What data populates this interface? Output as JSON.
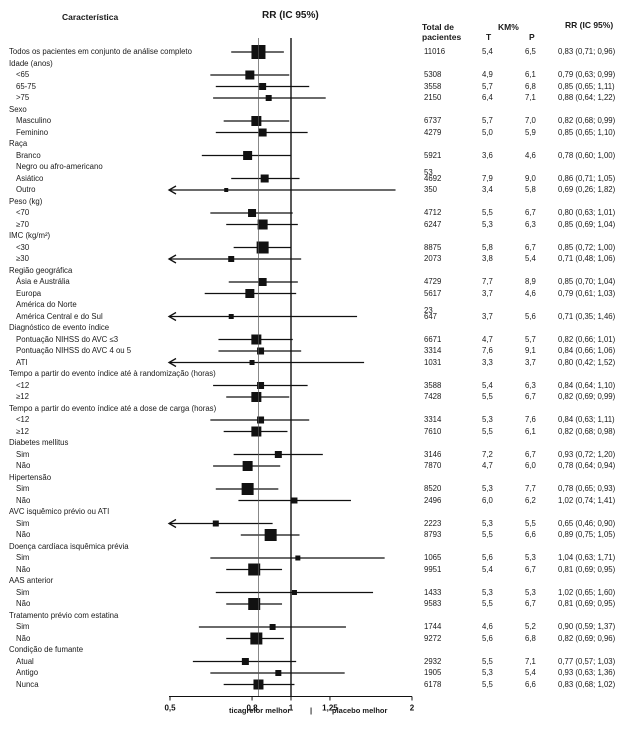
{
  "headers": {
    "characteristic": "Característica",
    "rr_title": "RR (IC 95%)",
    "total_line1": "Total de",
    "total_line2": "pacientes",
    "km": "KM%",
    "t": "T",
    "p": "P",
    "rr_col": "RR (IC 95%)"
  },
  "footer": {
    "left": "ticagrelor melhor",
    "sep": "|",
    "right": "placebo melhor"
  },
  "chart_data": {
    "type": "forest",
    "x_scale": "log",
    "x_ticks": [
      0.5,
      0.8,
      1,
      1.25,
      2
    ],
    "x_tick_labels": [
      "0,5",
      "0,8",
      "1",
      "1,25",
      "2"
    ],
    "xlim": [
      0.5,
      2
    ],
    "reference_line": 1,
    "overall_line": 0.83,
    "rows": [
      {
        "label": "Todos os pacientes em conjunto de análise completo",
        "indent": 0,
        "total": "11016",
        "t": "5,4",
        "p": "6,5",
        "rr_text": "0,83 (0,71; 0,96)",
        "rr": 0.83,
        "lo": 0.71,
        "hi": 0.96,
        "size": 14
      },
      {
        "label": "Idade (anos)",
        "indent": 0
      },
      {
        "label": "<65",
        "indent": 1,
        "total": "5308",
        "t": "4,9",
        "p": "6,1",
        "rr_text": "0,79 (0,63; 0,99)",
        "rr": 0.79,
        "lo": 0.63,
        "hi": 0.99,
        "size": 9
      },
      {
        "label": "65-75",
        "indent": 1,
        "total": "3558",
        "t": "5,7",
        "p": "6,8",
        "rr_text": "0,85 (0,65; 1,11)",
        "rr": 0.85,
        "lo": 0.65,
        "hi": 1.11,
        "size": 7
      },
      {
        "label": ">75",
        "indent": 1,
        "total": "2150",
        "t": "6,4",
        "p": "7,1",
        "rr_text": "0,88 (0,64; 1,22)",
        "rr": 0.88,
        "lo": 0.64,
        "hi": 1.22,
        "size": 6
      },
      {
        "label": "Sexo",
        "indent": 0
      },
      {
        "label": "Masculino",
        "indent": 1,
        "total": "6737",
        "t": "5,7",
        "p": "7,0",
        "rr_text": "0,82 (0,68; 0,99)",
        "rr": 0.82,
        "lo": 0.68,
        "hi": 0.99,
        "size": 10
      },
      {
        "label": "Feminino",
        "indent": 1,
        "total": "4279",
        "t": "5,0",
        "p": "5,9",
        "rr_text": "0,85 (0,65; 1,10)",
        "rr": 0.85,
        "lo": 0.65,
        "hi": 1.1,
        "size": 8
      },
      {
        "label": "Raça",
        "indent": 0
      },
      {
        "label": "Branco",
        "indent": 1,
        "total": "5921",
        "t": "3,6",
        "p": "4,6",
        "rr_text": "0,78 (0,60; 1,00)",
        "rr": 0.78,
        "lo": 0.6,
        "hi": 1.0,
        "size": 9
      },
      {
        "label": "Negro ou afro-americano",
        "indent": 1,
        "total": "53"
      },
      {
        "label": "Asiático",
        "indent": 1,
        "total": "4692",
        "t": "7,9",
        "p": "9,0",
        "rr_text": "0,86 (0,71; 1,05)",
        "rr": 0.86,
        "lo": 0.71,
        "hi": 1.05,
        "size": 8
      },
      {
        "label": "Outro",
        "indent": 1,
        "total": "350",
        "t": "3,4",
        "p": "5,8",
        "rr_text": "0,69 (0,26; 1,82)",
        "rr": 0.69,
        "lo": 0.26,
        "hi": 1.82,
        "size": 4
      },
      {
        "label": "Peso (kg)",
        "indent": 0
      },
      {
        "label": "<70",
        "indent": 1,
        "total": "4712",
        "t": "5,5",
        "p": "6,7",
        "rr_text": "0,80 (0,63; 1,01)",
        "rr": 0.8,
        "lo": 0.63,
        "hi": 1.01,
        "size": 8
      },
      {
        "label": "≥70",
        "indent": 1,
        "total": "6247",
        "t": "5,3",
        "p": "6,3",
        "rr_text": "0,85 (0,69; 1,04)",
        "rr": 0.85,
        "lo": 0.69,
        "hi": 1.04,
        "size": 10
      },
      {
        "label": "IMC (kg/m²)",
        "indent": 0
      },
      {
        "label": "<30",
        "indent": 1,
        "total": "8875",
        "t": "5,8",
        "p": "6,7",
        "rr_text": "0,85 (0,72; 1,00)",
        "rr": 0.85,
        "lo": 0.72,
        "hi": 1.0,
        "size": 12
      },
      {
        "label": "≥30",
        "indent": 1,
        "total": "2073",
        "t": "3,8",
        "p": "5,4",
        "rr_text": "0,71 (0,48; 1,06)",
        "rr": 0.71,
        "lo": 0.48,
        "hi": 1.06,
        "size": 6
      },
      {
        "label": "Região geográfica",
        "indent": 0
      },
      {
        "label": "Ásia e Austrália",
        "indent": 1,
        "total": "4729",
        "t": "7,7",
        "p": "8,9",
        "rr_text": "0,85 (0,70; 1,04)",
        "rr": 0.85,
        "lo": 0.7,
        "hi": 1.04,
        "size": 8
      },
      {
        "label": "Europa",
        "indent": 1,
        "total": "5617",
        "t": "3,7",
        "p": "4,6",
        "rr_text": "0,79 (0,61; 1,03)",
        "rr": 0.79,
        "lo": 0.61,
        "hi": 1.03,
        "size": 9
      },
      {
        "label": "América do Norte",
        "indent": 1,
        "total": "23"
      },
      {
        "label": "América Central e do Sul",
        "indent": 1,
        "total": "647",
        "t": "3,7",
        "p": "5,6",
        "rr_text": "0,71 (0,35; 1,46)",
        "rr": 0.71,
        "lo": 0.35,
        "hi": 1.46,
        "size": 5
      },
      {
        "label": "Diagnóstico de evento índice",
        "indent": 0
      },
      {
        "label": "Pontuação NIHSS do AVC ≤3",
        "indent": 1,
        "total": "6671",
        "t": "4,7",
        "p": "5,7",
        "rr_text": "0,82 (0,66; 1,01)",
        "rr": 0.82,
        "lo": 0.66,
        "hi": 1.01,
        "size": 10
      },
      {
        "label": "Pontuação NIHSS do AVC 4 ou 5",
        "indent": 1,
        "total": "3314",
        "t": "7,6",
        "p": "9,1",
        "rr_text": "0,84 (0,66; 1,06)",
        "rr": 0.84,
        "lo": 0.66,
        "hi": 1.06,
        "size": 7
      },
      {
        "label": "ATI",
        "indent": 1,
        "total": "1031",
        "t": "3,3",
        "p": "3,7",
        "rr_text": "0,80 (0,42; 1,52)",
        "rr": 0.8,
        "lo": 0.42,
        "hi": 1.52,
        "size": 5
      },
      {
        "label": "Tempo a partir do evento índice até à randomização (horas)",
        "indent": 0
      },
      {
        "label": "<12",
        "indent": 1,
        "total": "3588",
        "t": "5,4",
        "p": "6,3",
        "rr_text": "0,84 (0,64; 1,10)",
        "rr": 0.84,
        "lo": 0.64,
        "hi": 1.1,
        "size": 7
      },
      {
        "label": "≥12",
        "indent": 1,
        "total": "7428",
        "t": "5,5",
        "p": "6,7",
        "rr_text": "0,82 (0,69; 0,99)",
        "rr": 0.82,
        "lo": 0.69,
        "hi": 0.99,
        "size": 10
      },
      {
        "label": "Tempo a partir do evento índice até a dose de carga (horas)",
        "indent": 0
      },
      {
        "label": "<12",
        "indent": 1,
        "total": "3314",
        "t": "5,3",
        "p": "7,6",
        "rr_text": "0,84 (0,63; 1,11)",
        "rr": 0.84,
        "lo": 0.63,
        "hi": 1.11,
        "size": 7
      },
      {
        "label": "≥12",
        "indent": 1,
        "total": "7610",
        "t": "5,5",
        "p": "6,1",
        "rr_text": "0,82 (0,68; 0,98)",
        "rr": 0.82,
        "lo": 0.68,
        "hi": 0.98,
        "size": 10
      },
      {
        "label": "Diabetes mellitus",
        "indent": 0
      },
      {
        "label": "Sim",
        "indent": 1,
        "total": "3146",
        "t": "7,2",
        "p": "6,7",
        "rr_text": "0,93 (0,72; 1,20)",
        "rr": 0.93,
        "lo": 0.72,
        "hi": 1.2,
        "size": 7
      },
      {
        "label": "Não",
        "indent": 1,
        "total": "7870",
        "t": "4,7",
        "p": "6,0",
        "rr_text": "0,78 (0,64; 0,94)",
        "rr": 0.78,
        "lo": 0.64,
        "hi": 0.94,
        "size": 10
      },
      {
        "label": "Hipertensão",
        "indent": 0
      },
      {
        "label": "Sim",
        "indent": 1,
        "total": "8520",
        "t": "5,3",
        "p": "7,7",
        "rr_text": "0,78 (0,65; 0,93)",
        "rr": 0.78,
        "lo": 0.65,
        "hi": 0.93,
        "size": 12
      },
      {
        "label": "Não",
        "indent": 1,
        "total": "2496",
        "t": "6,0",
        "p": "6,2",
        "rr_text": "1,02 (0,74; 1,41)",
        "rr": 1.02,
        "lo": 0.74,
        "hi": 1.41,
        "size": 6
      },
      {
        "label": "AVC isquêmico prévio ou ATI",
        "indent": 0
      },
      {
        "label": "Sim",
        "indent": 1,
        "total": "2223",
        "t": "5,3",
        "p": "5,5",
        "rr_text": "0,65 (0,46; 0,90)",
        "rr": 0.65,
        "lo": 0.46,
        "hi": 0.9,
        "size": 6
      },
      {
        "label": "Não",
        "indent": 1,
        "total": "8793",
        "t": "5,5",
        "p": "6,6",
        "rr_text": "0,89 (0,75; 1,05)",
        "rr": 0.89,
        "lo": 0.75,
        "hi": 1.05,
        "size": 12
      },
      {
        "label": "Doença cardíaca isquêmica prévia",
        "indent": 0
      },
      {
        "label": "Sim",
        "indent": 1,
        "total": "1065",
        "t": "5,6",
        "p": "5,3",
        "rr_text": "1,04 (0,63; 1,71)",
        "rr": 1.04,
        "lo": 0.63,
        "hi": 1.71,
        "size": 5
      },
      {
        "label": "Não",
        "indent": 1,
        "total": "9951",
        "t": "5,4",
        "p": "6,7",
        "rr_text": "0,81 (0,69; 0,95)",
        "rr": 0.81,
        "lo": 0.69,
        "hi": 0.95,
        "size": 12
      },
      {
        "label": "AAS anterior",
        "indent": 0
      },
      {
        "label": "Sim",
        "indent": 1,
        "total": "1433",
        "t": "5,3",
        "p": "5,3",
        "rr_text": "1,02 (0,65; 1,60)",
        "rr": 1.02,
        "lo": 0.65,
        "hi": 1.6,
        "size": 5
      },
      {
        "label": "Não",
        "indent": 1,
        "total": "9583",
        "t": "5,5",
        "p": "6,7",
        "rr_text": "0,81 (0,69; 0,95)",
        "rr": 0.81,
        "lo": 0.69,
        "hi": 0.95,
        "size": 12
      },
      {
        "label": "Tratamento prévio com estatina",
        "indent": 0
      },
      {
        "label": "Sim",
        "indent": 1,
        "total": "1744",
        "t": "4,6",
        "p": "5,2",
        "rr_text": "0,90 (0,59; 1,37)",
        "rr": 0.9,
        "lo": 0.59,
        "hi": 1.37,
        "size": 6
      },
      {
        "label": "Não",
        "indent": 1,
        "total": "9272",
        "t": "5,6",
        "p": "6,8",
        "rr_text": "0,82 (0,69; 0,96)",
        "rr": 0.82,
        "lo": 0.69,
        "hi": 0.96,
        "size": 12
      },
      {
        "label": "Condição de fumante",
        "indent": 0
      },
      {
        "label": "Atual",
        "indent": 1,
        "total": "2932",
        "t": "5,5",
        "p": "7,1",
        "rr_text": "0,77 (0,57; 1,03)",
        "rr": 0.77,
        "lo": 0.57,
        "hi": 1.03,
        "size": 7
      },
      {
        "label": "Antigo",
        "indent": 1,
        "total": "1905",
        "t": "5,3",
        "p": "5,4",
        "rr_text": "0,93 (0,63; 1,36)",
        "rr": 0.93,
        "lo": 0.63,
        "hi": 1.36,
        "size": 6
      },
      {
        "label": "Nunca",
        "indent": 1,
        "total": "6178",
        "t": "5,5",
        "p": "6,6",
        "rr_text": "0,83 (0,68; 1,02)",
        "rr": 0.83,
        "lo": 0.68,
        "hi": 1.02,
        "size": 10
      }
    ]
  }
}
